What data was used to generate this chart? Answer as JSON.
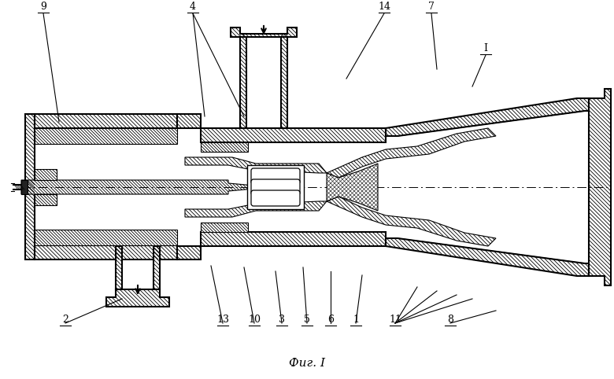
{
  "bg_color": "#ffffff",
  "line_color": "#000000",
  "fig_width": 7.8,
  "fig_height": 4.82,
  "dpi": 100,
  "caption": "Фиг. I"
}
